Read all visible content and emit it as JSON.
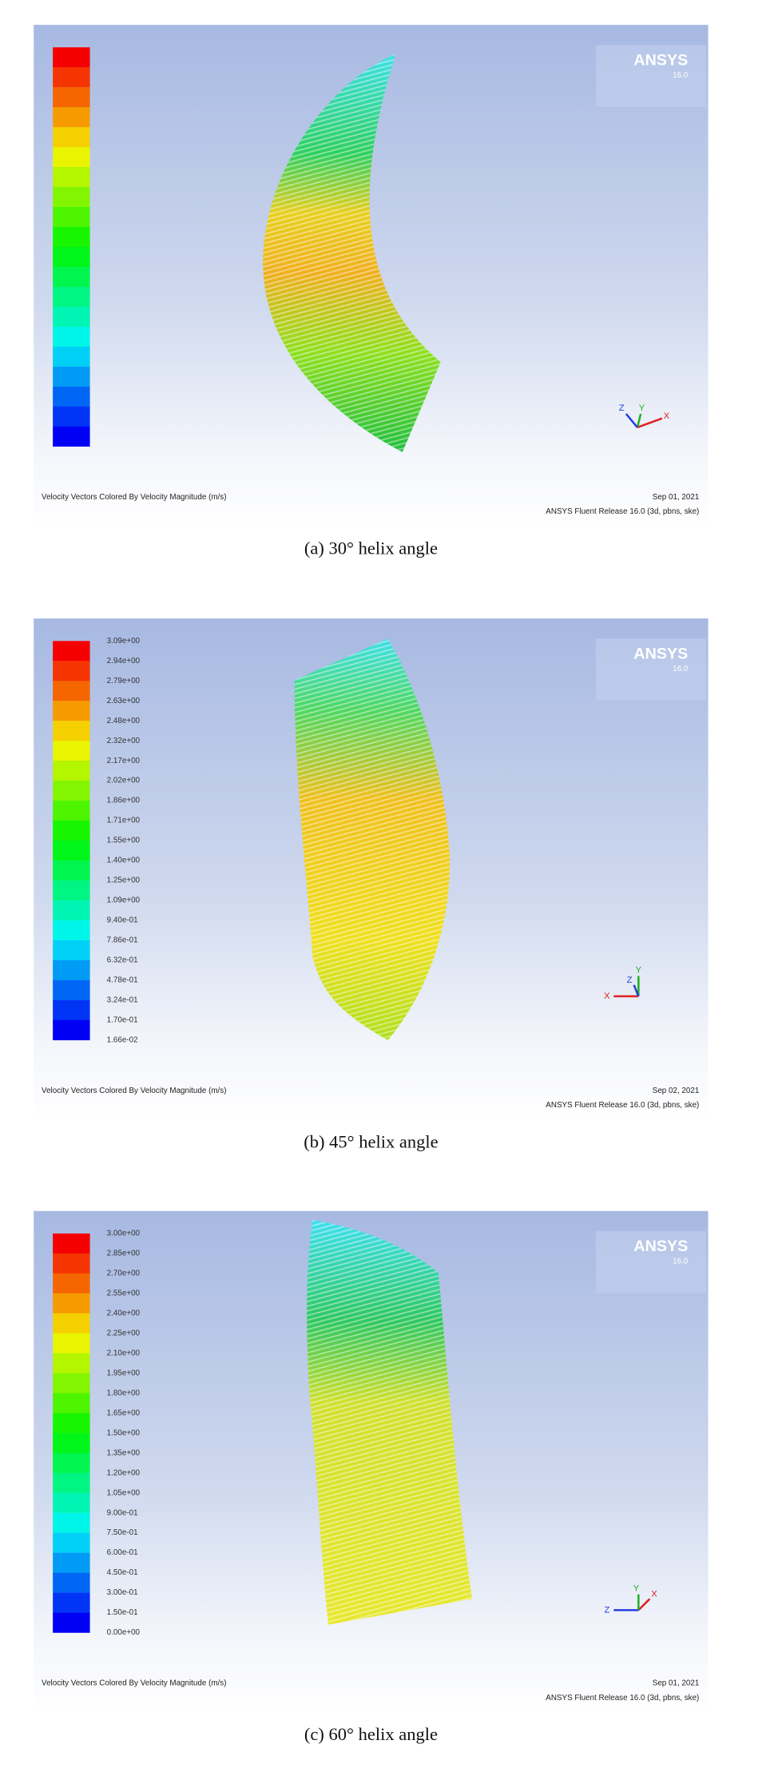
{
  "panels": [
    {
      "logo": "ANSYS",
      "version": "16.0",
      "footer_left": "Velocity Vectors Colored By Velocity Magnitude (m/s)",
      "date": "Sep 01, 2021",
      "release": "ANSYS Fluent Release 16.0 (3d, pbns, ske)",
      "caption": "(a) 30° helix angle",
      "triad": {
        "x": "X",
        "y": "Y",
        "z": "Z"
      }
    },
    {
      "logo": "ANSYS",
      "version": "16.0",
      "legend_labels": [
        "3.09e+00",
        "2.94e+00",
        "2.79e+00",
        "2.63e+00",
        "2.48e+00",
        "2.32e+00",
        "2.17e+00",
        "2.02e+00",
        "1.86e+00",
        "1.71e+00",
        "1.55e+00",
        "1.40e+00",
        "1.25e+00",
        "1.09e+00",
        "9.40e-01",
        "7.86e-01",
        "6.32e-01",
        "4.78e-01",
        "3.24e-01",
        "1.70e-01",
        "1.66e-02"
      ],
      "footer_left": "Velocity Vectors Colored By Velocity Magnitude (m/s)",
      "date": "Sep 02, 2021",
      "release": "ANSYS Fluent Release 16.0 (3d, pbns, ske)",
      "caption": "(b) 45° helix angle",
      "triad": {
        "x": "X",
        "y": "Y",
        "z": "Z"
      }
    },
    {
      "logo": "ANSYS",
      "version": "16.0",
      "legend_labels": [
        "3.00e+00",
        "2.85e+00",
        "2.70e+00",
        "2.55e+00",
        "2.40e+00",
        "2.25e+00",
        "2.10e+00",
        "1.95e+00",
        "1.80e+00",
        "1.65e+00",
        "1.50e+00",
        "1.35e+00",
        "1.20e+00",
        "1.05e+00",
        "9.00e-01",
        "7.50e-01",
        "6.00e-01",
        "4.50e-01",
        "3.00e-01",
        "1.50e-01",
        "0.00e+00"
      ],
      "footer_left": "Velocity Vectors Colored By Velocity Magnitude (m/s)",
      "date": "Sep 01, 2021",
      "release": "ANSYS Fluent Release 16.0 (3d, pbns, ske)",
      "caption": "(c) 60° helix angle",
      "triad": {
        "x": "X",
        "y": "Y",
        "z": "Z"
      }
    }
  ]
}
